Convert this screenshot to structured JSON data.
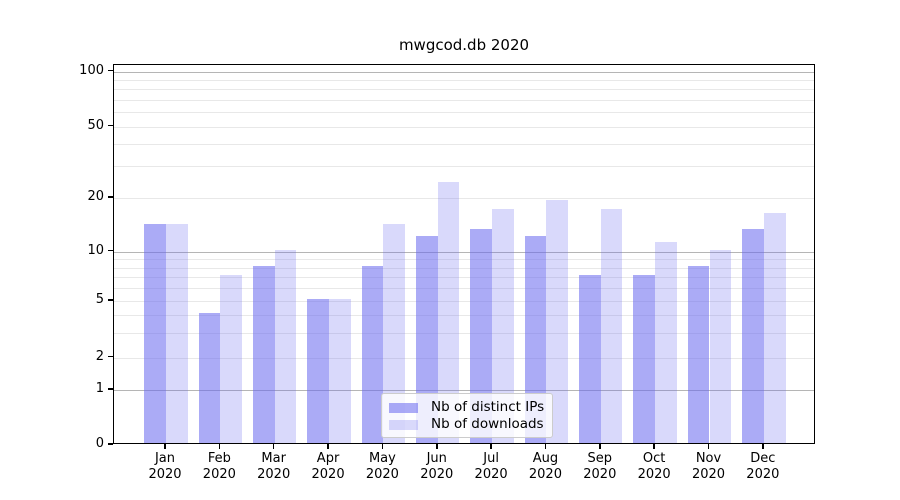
{
  "title": "mwgcod.db 2020",
  "legend": {
    "items": [
      {
        "label": "Nb of distinct IPs",
        "color": "rgba(102,102,238,0.55)"
      },
      {
        "label": "Nb of downloads",
        "color": "rgba(102,102,238,0.25)"
      }
    ],
    "position": "lower center"
  },
  "axis": {
    "y_scale": "symlog",
    "y_tick_labels": [
      "0",
      "1",
      "2",
      "5",
      "10",
      "20",
      "50",
      "100"
    ],
    "y_tick_values": [
      0,
      1,
      2,
      5,
      10,
      20,
      50,
      100
    ],
    "y_minor_grid_values": [
      3,
      4,
      6,
      7,
      8,
      9,
      30,
      40,
      60,
      70,
      80,
      90
    ],
    "y_major_grid_values": [
      1,
      10,
      100
    ],
    "x_tick_year": "2020",
    "x_tick_months": [
      "Jan",
      "Feb",
      "Mar",
      "Apr",
      "May",
      "Jun",
      "Jul",
      "Aug",
      "Sep",
      "Oct",
      "Nov",
      "Dec"
    ]
  },
  "chart_data": {
    "type": "bar",
    "title": "mwgcod.db 2020",
    "categories": [
      "Jan 2020",
      "Feb 2020",
      "Mar 2020",
      "Apr 2020",
      "May 2020",
      "Jun 2020",
      "Jul 2020",
      "Aug 2020",
      "Sep 2020",
      "Oct 2020",
      "Nov 2020",
      "Dec 2020"
    ],
    "series": [
      {
        "name": "Nb of distinct IPs",
        "color": "rgba(102,102,238,0.55)",
        "values": [
          14,
          4,
          8,
          5,
          8,
          12,
          13,
          12,
          7,
          7,
          8,
          13
        ]
      },
      {
        "name": "Nb of downloads",
        "color": "rgba(102,102,238,0.25)",
        "values": [
          14,
          7,
          10,
          5,
          14,
          24,
          17,
          19,
          17,
          11,
          10,
          16
        ]
      }
    ],
    "ylabel": "",
    "xlabel": "",
    "ylim": [
      0,
      110
    ],
    "grid": true,
    "legend_position": "lower center"
  }
}
